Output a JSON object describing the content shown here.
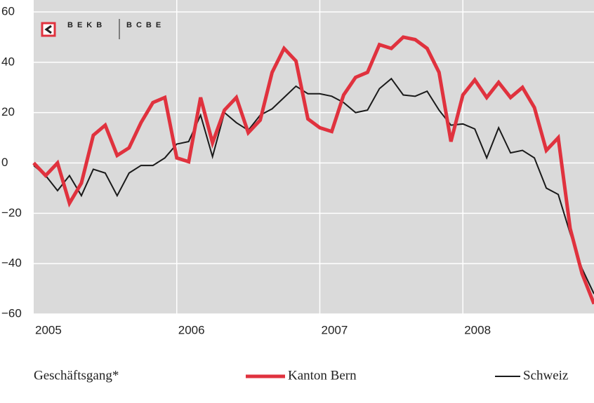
{
  "logo": {
    "left": "BEKB",
    "right": "BCBE"
  },
  "chart_data": {
    "type": "line",
    "caption": "Geschäftsgang*",
    "categories": [
      "2005",
      null,
      null,
      null,
      null,
      null,
      null,
      null,
      null,
      null,
      null,
      null,
      "2006",
      null,
      null,
      null,
      null,
      null,
      null,
      null,
      null,
      null,
      null,
      null,
      "2007",
      null,
      null,
      null,
      null,
      null,
      null,
      null,
      null,
      null,
      null,
      null,
      "2008",
      null,
      null,
      null,
      null,
      null,
      null,
      null,
      null,
      null,
      null,
      null
    ],
    "series": [
      {
        "name": "Kanton Bern",
        "color": "#e0323e",
        "width": 5,
        "values": [
          0,
          -5,
          0,
          -16,
          -8,
          11,
          15,
          3,
          6,
          16,
          24,
          26,
          2,
          0.5,
          26,
          8,
          21,
          26,
          12,
          17,
          36,
          45.5,
          40.5,
          17.5,
          14,
          12.5,
          27,
          34,
          36,
          47,
          45.5,
          50,
          49,
          45.5,
          36,
          8.5,
          27,
          33,
          26,
          32,
          26,
          30,
          22,
          5,
          10,
          -26,
          -44,
          -56
        ]
      },
      {
        "name": "Schweiz",
        "color": "#1a1a1a",
        "width": 2,
        "values": [
          -1,
          -5,
          -11,
          -5,
          -13,
          -2.5,
          -4,
          -13,
          -4,
          -1,
          -1,
          2,
          7.5,
          8.5,
          19,
          2.5,
          20,
          16,
          13,
          19,
          21.5,
          26,
          30.5,
          27.5,
          27.5,
          26.5,
          24,
          20,
          21,
          29.5,
          33.5,
          27,
          26.5,
          28.5,
          21,
          15,
          15.5,
          13.5,
          2,
          14,
          4,
          5,
          2,
          -10,
          -12.5,
          -28,
          -42,
          -52
        ]
      }
    ],
    "ylim": [
      -60,
      60
    ],
    "yticks": [
      {
        "value": -60,
        "label": "−60"
      },
      {
        "value": -40,
        "label": "−40"
      },
      {
        "value": -20,
        "label": "−20"
      },
      0,
      20,
      40,
      60
    ],
    "grid": true
  }
}
